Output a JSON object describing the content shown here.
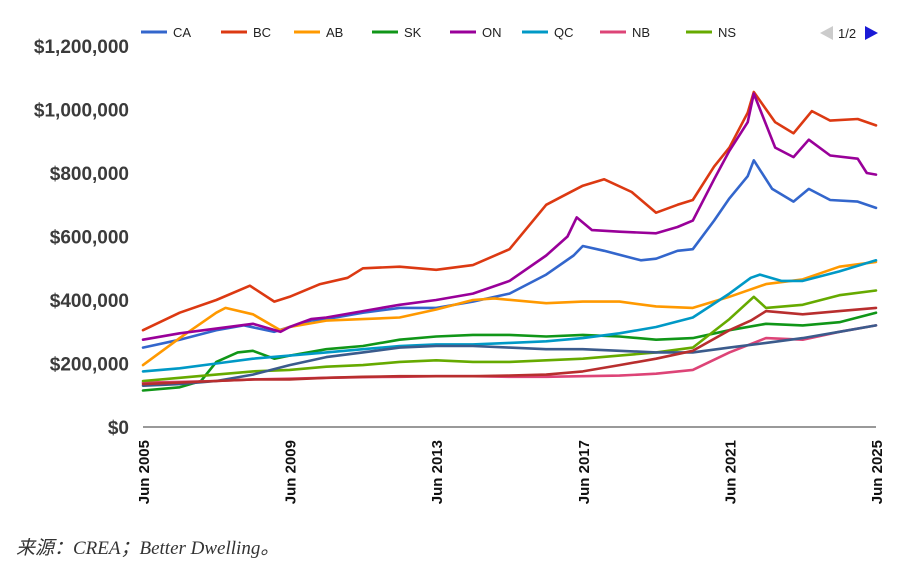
{
  "chart_data": {
    "type": "line",
    "title": "",
    "xlabel": "",
    "ylabel": "",
    "ylim": [
      0,
      1200000
    ],
    "y_ticks": [
      0,
      200000,
      400000,
      600000,
      800000,
      1000000,
      1200000
    ],
    "y_tick_labels": [
      "$0",
      "$200,000",
      "$400,000",
      "$600,000",
      "$800,000",
      "$1,000,000",
      "$1,200,000"
    ],
    "x_ticks": [
      "2005-06",
      "2009-06",
      "2013-06",
      "2017-06",
      "2021-06",
      "2025-06"
    ],
    "x_tick_labels": [
      "Jun 2005",
      "Jun 2009",
      "Jun 2013",
      "Jun 2017",
      "Jun 2021",
      "Jun 2025"
    ],
    "grid": false,
    "legend_position": "top",
    "series": [
      {
        "name": "CA",
        "color": "#3366cc",
        "points": [
          [
            "2005-06",
            250000
          ],
          [
            "2006-06",
            275000
          ],
          [
            "2007-06",
            305000
          ],
          [
            "2008-03",
            320000
          ],
          [
            "2009-01",
            300000
          ],
          [
            "2009-06",
            315000
          ],
          [
            "2010-01",
            335000
          ],
          [
            "2010-06",
            340000
          ],
          [
            "2011-06",
            360000
          ],
          [
            "2012-06",
            375000
          ],
          [
            "2013-06",
            375000
          ],
          [
            "2014-06",
            395000
          ],
          [
            "2015-06",
            420000
          ],
          [
            "2016-06",
            480000
          ],
          [
            "2017-03",
            540000
          ],
          [
            "2017-06",
            570000
          ],
          [
            "2018-01",
            555000
          ],
          [
            "2019-01",
            525000
          ],
          [
            "2019-06",
            530000
          ],
          [
            "2020-01",
            555000
          ],
          [
            "2020-06",
            560000
          ],
          [
            "2021-01",
            650000
          ],
          [
            "2021-06",
            720000
          ],
          [
            "2021-12",
            790000
          ],
          [
            "2022-02",
            840000
          ],
          [
            "2022-08",
            750000
          ],
          [
            "2023-03",
            710000
          ],
          [
            "2023-08",
            750000
          ],
          [
            "2024-03",
            715000
          ],
          [
            "2024-12",
            710000
          ],
          [
            "2025-06",
            690000
          ]
        ]
      },
      {
        "name": "BC",
        "color": "#dc3912",
        "points": [
          [
            "2005-06",
            305000
          ],
          [
            "2006-06",
            360000
          ],
          [
            "2007-06",
            400000
          ],
          [
            "2008-05",
            445000
          ],
          [
            "2009-01",
            395000
          ],
          [
            "2009-06",
            410000
          ],
          [
            "2010-04",
            450000
          ],
          [
            "2011-01",
            470000
          ],
          [
            "2011-06",
            500000
          ],
          [
            "2012-06",
            505000
          ],
          [
            "2013-06",
            495000
          ],
          [
            "2014-06",
            510000
          ],
          [
            "2015-06",
            560000
          ],
          [
            "2016-06",
            700000
          ],
          [
            "2016-11",
            725000
          ],
          [
            "2017-06",
            760000
          ],
          [
            "2018-01",
            780000
          ],
          [
            "2018-10",
            740000
          ],
          [
            "2019-06",
            675000
          ],
          [
            "2020-01",
            700000
          ],
          [
            "2020-06",
            715000
          ],
          [
            "2021-01",
            820000
          ],
          [
            "2021-06",
            880000
          ],
          [
            "2021-12",
            990000
          ],
          [
            "2022-02",
            1055000
          ],
          [
            "2022-09",
            960000
          ],
          [
            "2023-03",
            925000
          ],
          [
            "2023-09",
            995000
          ],
          [
            "2024-03",
            965000
          ],
          [
            "2024-12",
            970000
          ],
          [
            "2025-06",
            950000
          ]
        ]
      },
      {
        "name": "AB",
        "color": "#ff9900",
        "points": [
          [
            "2005-06",
            195000
          ],
          [
            "2006-06",
            280000
          ],
          [
            "2007-06",
            360000
          ],
          [
            "2007-09",
            375000
          ],
          [
            "2008-06",
            355000
          ],
          [
            "2009-03",
            305000
          ],
          [
            "2009-06",
            315000
          ],
          [
            "2010-06",
            335000
          ],
          [
            "2011-06",
            340000
          ],
          [
            "2012-06",
            345000
          ],
          [
            "2013-06",
            370000
          ],
          [
            "2014-06",
            400000
          ],
          [
            "2015-01",
            405000
          ],
          [
            "2016-06",
            390000
          ],
          [
            "2017-06",
            395000
          ],
          [
            "2018-06",
            395000
          ],
          [
            "2019-06",
            380000
          ],
          [
            "2020-06",
            375000
          ],
          [
            "2021-06",
            410000
          ],
          [
            "2022-06",
            450000
          ],
          [
            "2023-06",
            465000
          ],
          [
            "2024-06",
            505000
          ],
          [
            "2025-06",
            520000
          ]
        ]
      },
      {
        "name": "SK",
        "color": "#109618",
        "points": [
          [
            "2005-06",
            115000
          ],
          [
            "2006-06",
            125000
          ],
          [
            "2007-01",
            145000
          ],
          [
            "2007-06",
            205000
          ],
          [
            "2008-01",
            235000
          ],
          [
            "2008-06",
            240000
          ],
          [
            "2009-01",
            215000
          ],
          [
            "2009-06",
            225000
          ],
          [
            "2010-06",
            245000
          ],
          [
            "2011-06",
            255000
          ],
          [
            "2012-06",
            275000
          ],
          [
            "2013-06",
            285000
          ],
          [
            "2014-06",
            290000
          ],
          [
            "2015-06",
            290000
          ],
          [
            "2016-06",
            285000
          ],
          [
            "2017-06",
            290000
          ],
          [
            "2018-06",
            285000
          ],
          [
            "2019-06",
            275000
          ],
          [
            "2020-06",
            280000
          ],
          [
            "2021-06",
            305000
          ],
          [
            "2022-06",
            325000
          ],
          [
            "2023-06",
            320000
          ],
          [
            "2024-06",
            330000
          ],
          [
            "2025-06",
            360000
          ]
        ]
      },
      {
        "name": "ON",
        "color": "#990099",
        "points": [
          [
            "2005-06",
            275000
          ],
          [
            "2006-06",
            295000
          ],
          [
            "2007-06",
            310000
          ],
          [
            "2008-06",
            325000
          ],
          [
            "2009-03",
            300000
          ],
          [
            "2009-06",
            315000
          ],
          [
            "2010-01",
            340000
          ],
          [
            "2010-06",
            345000
          ],
          [
            "2011-06",
            365000
          ],
          [
            "2012-06",
            385000
          ],
          [
            "2013-06",
            400000
          ],
          [
            "2014-06",
            420000
          ],
          [
            "2015-06",
            460000
          ],
          [
            "2016-06",
            540000
          ],
          [
            "2017-01",
            600000
          ],
          [
            "2017-04",
            660000
          ],
          [
            "2017-09",
            620000
          ],
          [
            "2018-06",
            615000
          ],
          [
            "2019-06",
            610000
          ],
          [
            "2020-01",
            630000
          ],
          [
            "2020-06",
            650000
          ],
          [
            "2021-01",
            780000
          ],
          [
            "2021-06",
            870000
          ],
          [
            "2021-12",
            960000
          ],
          [
            "2022-02",
            1050000
          ],
          [
            "2022-09",
            880000
          ],
          [
            "2023-03",
            850000
          ],
          [
            "2023-08",
            905000
          ],
          [
            "2024-03",
            855000
          ],
          [
            "2024-12",
            845000
          ],
          [
            "2025-03",
            800000
          ],
          [
            "2025-06",
            795000
          ]
        ]
      },
      {
        "name": "QC",
        "color": "#0099c6",
        "points": [
          [
            "2005-06",
            175000
          ],
          [
            "2006-06",
            185000
          ],
          [
            "2007-06",
            200000
          ],
          [
            "2008-06",
            215000
          ],
          [
            "2009-06",
            225000
          ],
          [
            "2010-06",
            235000
          ],
          [
            "2011-06",
            245000
          ],
          [
            "2012-06",
            255000
          ],
          [
            "2013-06",
            260000
          ],
          [
            "2014-06",
            260000
          ],
          [
            "2015-06",
            265000
          ],
          [
            "2016-06",
            270000
          ],
          [
            "2017-06",
            280000
          ],
          [
            "2018-06",
            295000
          ],
          [
            "2019-06",
            315000
          ],
          [
            "2020-06",
            345000
          ],
          [
            "2021-06",
            420000
          ],
          [
            "2022-01",
            470000
          ],
          [
            "2022-04",
            480000
          ],
          [
            "2022-11",
            460000
          ],
          [
            "2023-06",
            460000
          ],
          [
            "2024-06",
            490000
          ],
          [
            "2025-06",
            525000
          ]
        ]
      },
      {
        "name": "NB",
        "color": "#dd4477",
        "points": [
          [
            "2005-06",
            140000
          ],
          [
            "2006-06",
            142000
          ],
          [
            "2007-06",
            145000
          ],
          [
            "2008-06",
            150000
          ],
          [
            "2009-06",
            152000
          ],
          [
            "2010-06",
            155000
          ],
          [
            "2011-06",
            157000
          ],
          [
            "2012-06",
            158000
          ],
          [
            "2013-06",
            160000
          ],
          [
            "2014-06",
            160000
          ],
          [
            "2015-06",
            158000
          ],
          [
            "2016-06",
            158000
          ],
          [
            "2017-06",
            160000
          ],
          [
            "2018-06",
            162000
          ],
          [
            "2019-06",
            168000
          ],
          [
            "2020-06",
            180000
          ],
          [
            "2021-06",
            235000
          ],
          [
            "2022-06",
            280000
          ],
          [
            "2023-06",
            275000
          ],
          [
            "2024-06",
            300000
          ],
          [
            "2025-06",
            320000
          ]
        ]
      },
      {
        "name": "NS",
        "color": "#66aa00",
        "points": [
          [
            "2005-06",
            145000
          ],
          [
            "2006-06",
            155000
          ],
          [
            "2007-06",
            165000
          ],
          [
            "2008-06",
            175000
          ],
          [
            "2009-06",
            180000
          ],
          [
            "2010-06",
            190000
          ],
          [
            "2011-06",
            195000
          ],
          [
            "2012-06",
            205000
          ],
          [
            "2013-06",
            210000
          ],
          [
            "2014-06",
            205000
          ],
          [
            "2015-06",
            205000
          ],
          [
            "2016-06",
            210000
          ],
          [
            "2017-06",
            215000
          ],
          [
            "2018-06",
            225000
          ],
          [
            "2019-06",
            235000
          ],
          [
            "2020-06",
            250000
          ],
          [
            "2021-06",
            340000
          ],
          [
            "2022-02",
            410000
          ],
          [
            "2022-06",
            375000
          ],
          [
            "2023-06",
            385000
          ],
          [
            "2024-06",
            415000
          ],
          [
            "2025-06",
            430000
          ]
        ]
      },
      {
        "name": "",
        "color": "#3b5b8c",
        "points": [
          [
            "2005-06",
            130000
          ],
          [
            "2006-06",
            135000
          ],
          [
            "2007-06",
            145000
          ],
          [
            "2008-06",
            165000
          ],
          [
            "2009-06",
            195000
          ],
          [
            "2010-06",
            220000
          ],
          [
            "2011-06",
            235000
          ],
          [
            "2012-06",
            250000
          ],
          [
            "2013-06",
            255000
          ],
          [
            "2014-06",
            255000
          ],
          [
            "2015-06",
            250000
          ],
          [
            "2016-06",
            245000
          ],
          [
            "2017-06",
            245000
          ],
          [
            "2018-06",
            240000
          ],
          [
            "2019-06",
            235000
          ],
          [
            "2020-06",
            235000
          ],
          [
            "2021-06",
            250000
          ],
          [
            "2022-06",
            265000
          ],
          [
            "2023-06",
            280000
          ],
          [
            "2024-06",
            300000
          ],
          [
            "2025-06",
            320000
          ]
        ]
      },
      {
        "name": "",
        "color": "#b82e2e",
        "points": [
          [
            "2005-06",
            135000
          ],
          [
            "2006-06",
            140000
          ],
          [
            "2007-06",
            145000
          ],
          [
            "2008-06",
            150000
          ],
          [
            "2009-06",
            150000
          ],
          [
            "2010-06",
            155000
          ],
          [
            "2011-06",
            158000
          ],
          [
            "2012-06",
            160000
          ],
          [
            "2013-06",
            160000
          ],
          [
            "2014-06",
            160000
          ],
          [
            "2015-06",
            162000
          ],
          [
            "2016-06",
            165000
          ],
          [
            "2017-06",
            175000
          ],
          [
            "2018-06",
            195000
          ],
          [
            "2019-06",
            215000
          ],
          [
            "2020-06",
            240000
          ],
          [
            "2021-06",
            305000
          ],
          [
            "2022-01",
            335000
          ],
          [
            "2022-06",
            365000
          ],
          [
            "2023-06",
            355000
          ],
          [
            "2024-06",
            365000
          ],
          [
            "2025-06",
            375000
          ]
        ]
      }
    ]
  },
  "legend": [
    {
      "name": "CA",
      "color": "#3366cc"
    },
    {
      "name": "BC",
      "color": "#dc3912"
    },
    {
      "name": "AB",
      "color": "#ff9900"
    },
    {
      "name": "SK",
      "color": "#109618"
    },
    {
      "name": "ON",
      "color": "#990099"
    },
    {
      "name": "QC",
      "color": "#0099c6"
    },
    {
      "name": "NB",
      "color": "#dd4477"
    },
    {
      "name": "NS",
      "color": "#66aa00"
    }
  ],
  "pager": {
    "text": "1/2",
    "prev_color": "#cccccc",
    "next_color": "#1a1ad6"
  },
  "source_note": "来源：CREA；Better Dwelling。"
}
